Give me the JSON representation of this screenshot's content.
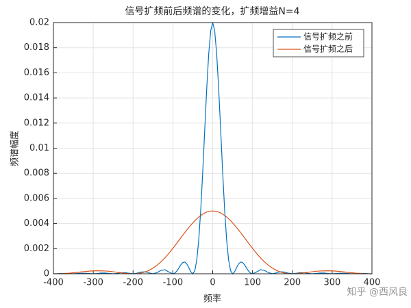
{
  "chart_data": {
    "type": "line",
    "title": "信号扩频前后频谱的变化，扩频增益N=4",
    "xlabel": "频率",
    "ylabel": "频谱幅度",
    "x": [
      -400,
      -390,
      -380,
      -370,
      -360,
      -350,
      -340,
      -330,
      -320,
      -310,
      -300,
      -290,
      -280,
      -270,
      -260,
      -250,
      -240,
      -230,
      -220,
      -210,
      -200,
      -190,
      -180,
      -170,
      -160,
      -150,
      -140,
      -130,
      -120,
      -110,
      -100,
      -95,
      -90,
      -85,
      -80,
      -75,
      -70,
      -65,
      -60,
      -55,
      -50,
      -45,
      -40,
      -35,
      -30,
      -25,
      -20,
      -15,
      -10,
      -5,
      0,
      5,
      10,
      15,
      20,
      25,
      30,
      35,
      40,
      45,
      50,
      55,
      60,
      65,
      70,
      75,
      80,
      85,
      90,
      95,
      100,
      110,
      120,
      130,
      140,
      150,
      160,
      170,
      180,
      190,
      200,
      210,
      220,
      230,
      240,
      250,
      260,
      270,
      280,
      290,
      300,
      310,
      320,
      330,
      340,
      350,
      360,
      370,
      380,
      390,
      400
    ],
    "series": [
      {
        "name": "信号扩频之前",
        "color": "#0072bd",
        "values": [
          0,
          1e-05,
          3e-05,
          3e-05,
          2e-05,
          0,
          2e-05,
          4e-05,
          4e-05,
          2e-05,
          0,
          2e-05,
          6e-05,
          6e-05,
          3e-05,
          0,
          3e-05,
          9e-05,
          9e-05,
          4e-05,
          0,
          5e-05,
          0.00014,
          0.00016,
          7e-05,
          0,
          9e-05,
          0.00027,
          0.00032,
          0.00014,
          0,
          5e-05,
          0.00022,
          0.00046,
          0.00072,
          0.0009,
          0.00094,
          0.00078,
          0.00049,
          0.00016,
          0,
          0.00024,
          0.00109,
          0.00271,
          0.00509,
          0.00811,
          0.01146,
          0.01474,
          0.0175,
          0.01935,
          0.02,
          0.01935,
          0.0175,
          0.01474,
          0.01146,
          0.00811,
          0.00509,
          0.00271,
          0.00109,
          0.00024,
          0,
          0.00016,
          0.00049,
          0.00078,
          0.00094,
          0.0009,
          0.00072,
          0.00046,
          0.00022,
          5e-05,
          0,
          0.00014,
          0.00032,
          0.00027,
          9e-05,
          0,
          7e-05,
          0.00016,
          0.00014,
          5e-05,
          0,
          4e-05,
          9e-05,
          9e-05,
          3e-05,
          0,
          3e-05,
          6e-05,
          6e-05,
          2e-05,
          0,
          2e-05,
          4e-05,
          4e-05,
          2e-05,
          0,
          2e-05,
          3e-05,
          3e-05,
          1e-05,
          0
        ]
      },
      {
        "name": "信号扩频之后",
        "color": "#d95319",
        "values": [
          0,
          3e-06,
          1e-05,
          3e-05,
          5e-05,
          8e-05,
          0.00011,
          0.00015,
          0.00018,
          0.00021,
          0.00023,
          0.00024,
          0.00023,
          0.00022,
          0.0002,
          0.00016,
          0.00012,
          8e-05,
          4e-05,
          1e-05,
          0,
          1e-05,
          6e-05,
          0.00014,
          0.00027,
          0.00045,
          0.00068,
          0.00095,
          0.00127,
          0.00163,
          0.00203,
          0.00223,
          0.00244,
          0.00265,
          0.00286,
          0.00308,
          0.00328,
          0.00349,
          0.00368,
          0.00387,
          0.00405,
          0.00422,
          0.00438,
          0.00452,
          0.00464,
          0.00475,
          0.00484,
          0.00491,
          0.00496,
          0.00499,
          0.005,
          0.00499,
          0.00496,
          0.00491,
          0.00484,
          0.00475,
          0.00464,
          0.00452,
          0.00438,
          0.00422,
          0.00405,
          0.00387,
          0.00368,
          0.00349,
          0.00328,
          0.00308,
          0.00286,
          0.00265,
          0.00244,
          0.00223,
          0.00203,
          0.00163,
          0.00127,
          0.00095,
          0.00068,
          0.00045,
          0.00027,
          0.00014,
          6e-05,
          1e-05,
          0,
          1e-05,
          4e-05,
          8e-05,
          0.00012,
          0.00016,
          0.0002,
          0.00022,
          0.00023,
          0.00024,
          0.00023,
          0.00021,
          0.00018,
          0.00015,
          0.00011,
          8e-05,
          5e-05,
          3e-05,
          1e-05,
          3e-06,
          0
        ]
      }
    ],
    "xlim": [
      -400,
      400
    ],
    "xticks": [
      -400,
      -300,
      -200,
      -100,
      0,
      100,
      200,
      300,
      400
    ],
    "ylim": [
      0,
      0.02
    ],
    "yticks": [
      0,
      0.002,
      0.004,
      0.006,
      0.008,
      0.01,
      0.012,
      0.014,
      0.016,
      0.018,
      0.02
    ],
    "grid": true,
    "legend": "upper right"
  },
  "watermark": "知乎 @西风良"
}
